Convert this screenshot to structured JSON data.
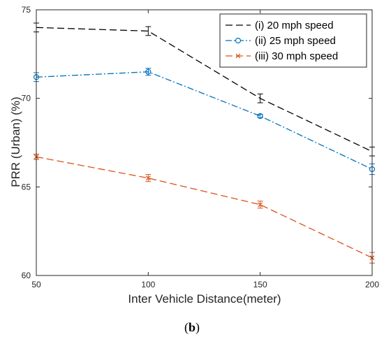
{
  "chart_data": {
    "type": "line",
    "xlabel": "Inter Vehicle Distance(meter)",
    "ylabel": "PRR (Urban) (%)",
    "x": [
      50,
      100,
      150,
      200
    ],
    "xlim": [
      50,
      200
    ],
    "ylim": [
      60,
      75
    ],
    "xticks": [
      "50",
      "100",
      "150",
      "200"
    ],
    "yticks": [
      "60",
      "65",
      "70",
      "75"
    ],
    "grid": false,
    "legend_position": "top-right",
    "series": [
      {
        "name": "(i) 20 mph speed",
        "values": [
          74.0,
          73.8,
          70.0,
          67.0
        ],
        "errors": [
          0.25,
          0.25,
          0.25,
          0.25
        ],
        "color": "#000000",
        "style": "dashed",
        "marker": "none"
      },
      {
        "name": "(ii) 25 mph speed",
        "values": [
          71.2,
          71.5,
          69.0,
          66.0
        ],
        "errors": [
          0.25,
          0.2,
          0.1,
          0.3
        ],
        "color": "#0072BD",
        "style": "dashdot",
        "marker": "circle"
      },
      {
        "name": "(iii) 30 mph speed",
        "values": [
          66.7,
          65.5,
          64.0,
          61.0
        ],
        "errors": [
          0.15,
          0.2,
          0.2,
          0.3
        ],
        "color": "#D95319",
        "style": "dashed",
        "marker": "x"
      }
    ]
  },
  "caption": {
    "text": "b"
  }
}
